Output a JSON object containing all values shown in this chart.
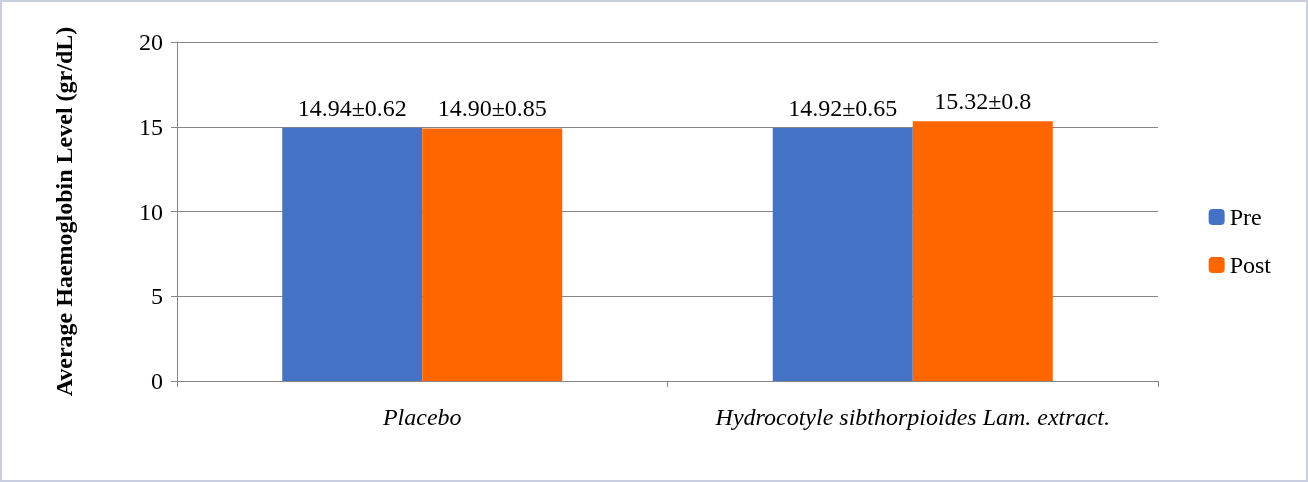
{
  "chart_data": {
    "type": "bar",
    "ylabel": "Average Haemoglobin Level (gr/dL)",
    "categories": [
      "Placebo",
      "Hydrocotyle sibthorpioides Lam. extract."
    ],
    "series": [
      {
        "name": "Pre",
        "color": "#4472c4",
        "values": [
          14.94,
          14.92
        ],
        "value_labels": [
          "14.94±0.62",
          "14.92±0.65"
        ]
      },
      {
        "name": "Post",
        "color": "#ff6600",
        "values": [
          14.9,
          15.32
        ],
        "value_labels": [
          "14.90±0.85",
          "15.32±0.8"
        ]
      }
    ],
    "ylim": [
      0,
      20
    ],
    "yticks": [
      0,
      5,
      10,
      15,
      20
    ],
    "grid": "y",
    "legend": "right"
  }
}
